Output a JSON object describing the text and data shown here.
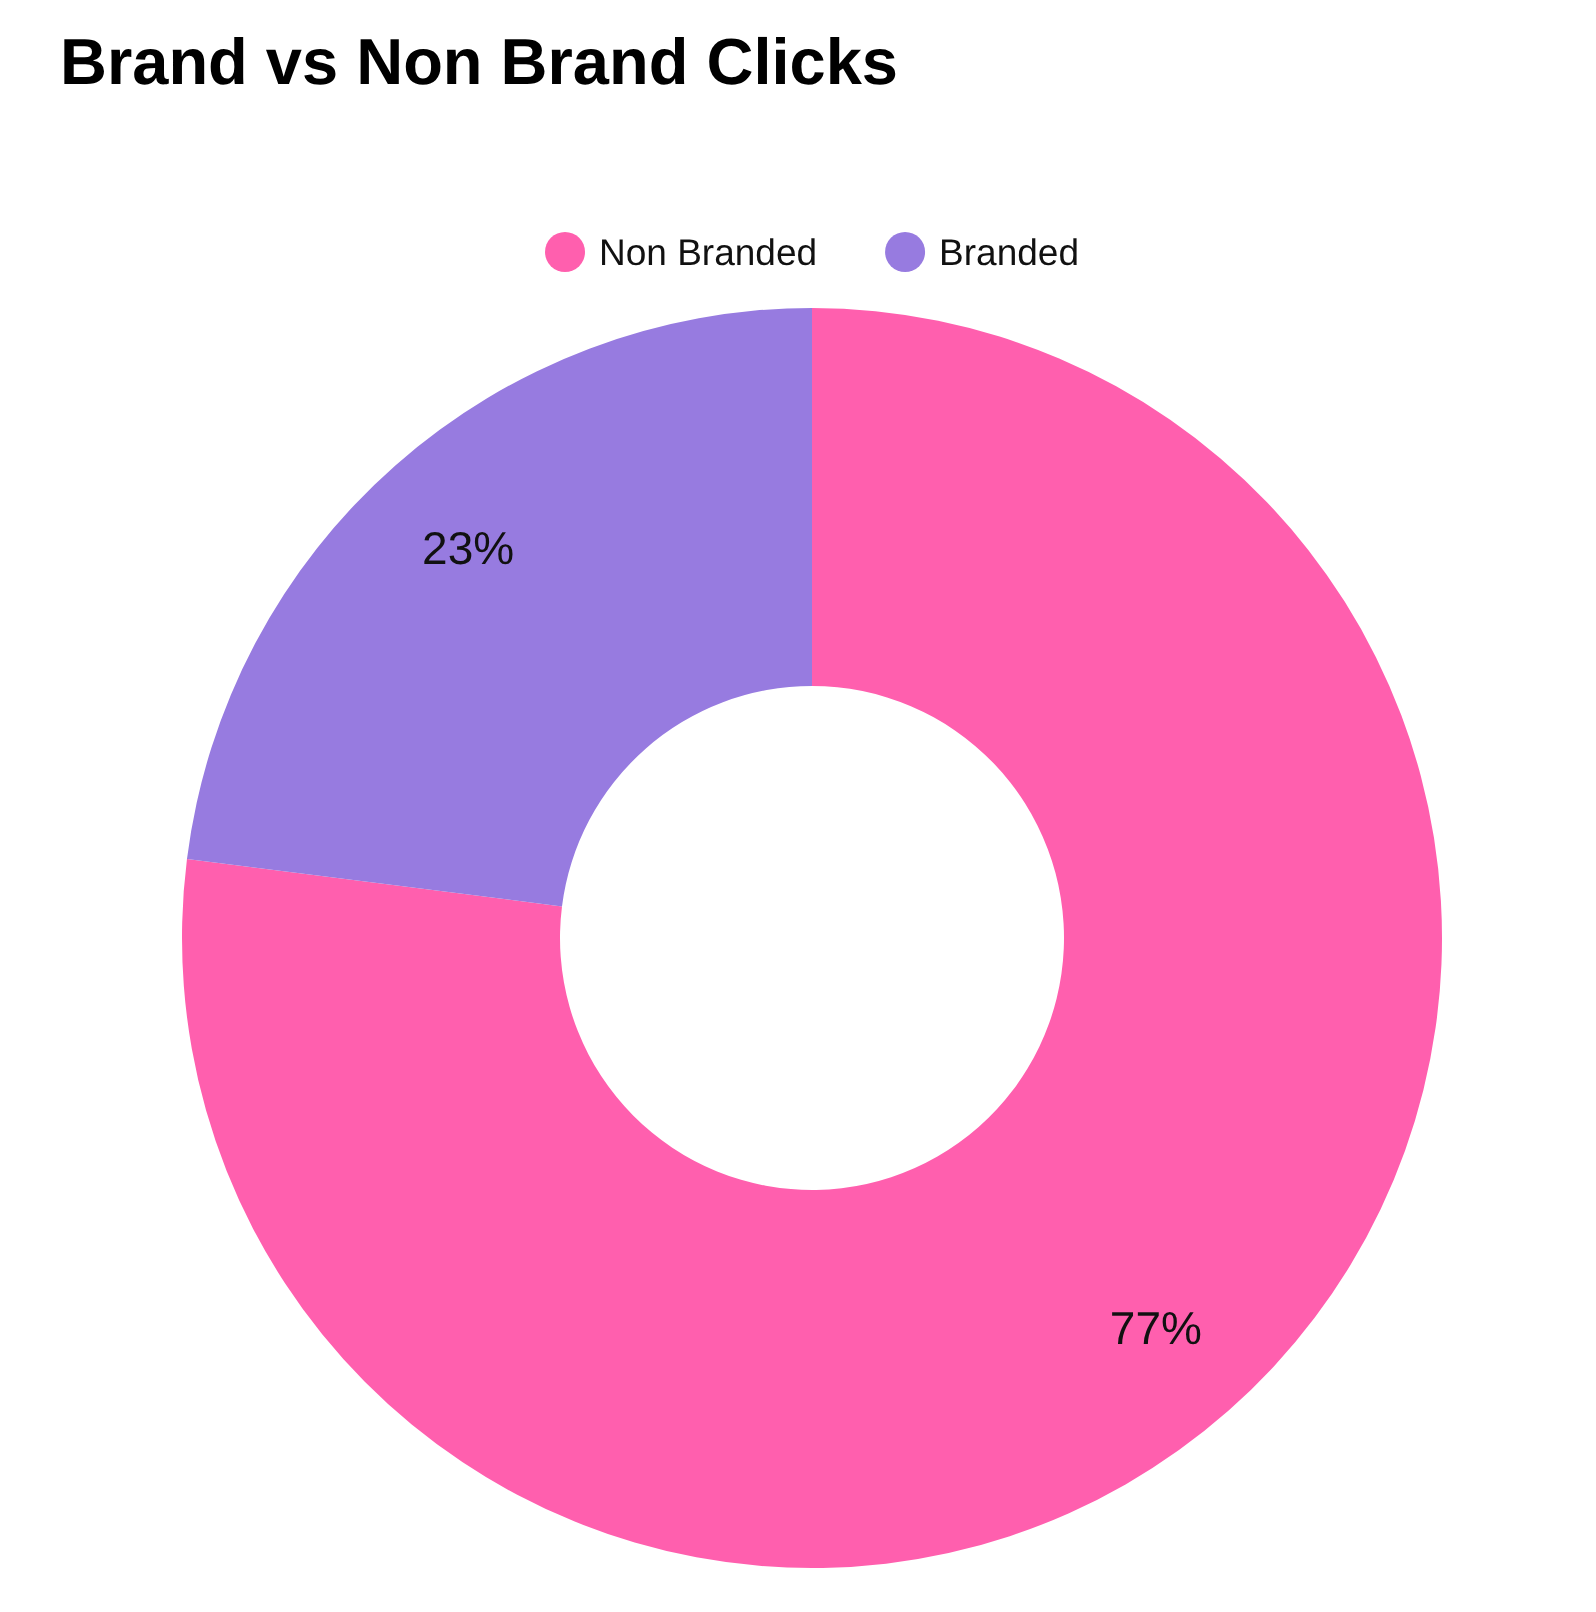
{
  "chart_data": {
    "type": "donut",
    "title": "Brand vs Non Brand Clicks",
    "categories": [
      "Non Branded",
      "Branded"
    ],
    "values": [
      77,
      23
    ],
    "colors": [
      "#ff5fae",
      "#977be0"
    ],
    "value_labels": [
      "77%",
      "23%"
    ],
    "legend": "top"
  }
}
